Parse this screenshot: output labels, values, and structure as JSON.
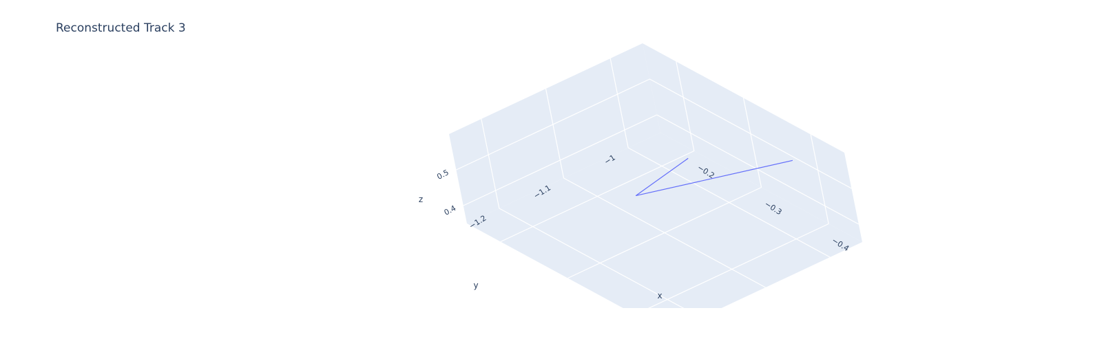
{
  "chart_data": {
    "type": "line3d",
    "title": "Reconstructed Track 3",
    "axes": {
      "x": {
        "label": "x",
        "ticks": [
          "−0.4",
          "−0.3",
          "−0.2"
        ],
        "tick_values": [
          -0.4,
          -0.3,
          -0.2
        ],
        "range": [
          -0.45,
          -0.15
        ]
      },
      "y": {
        "label": "y",
        "ticks": [
          "−1.2",
          "−1.1",
          "−1"
        ],
        "tick_values": [
          -1.2,
          -1.1,
          -1.0
        ],
        "range": [
          -1.25,
          -0.95
        ]
      },
      "z": {
        "label": "z",
        "ticks": [
          "0.4",
          "0.5"
        ],
        "tick_values": [
          0.4,
          0.5
        ],
        "range": [
          0.35,
          0.6
        ]
      }
    },
    "series": [
      {
        "points": [
          {
            "x": -0.27,
            "y": -1.02,
            "z": 0.46
          },
          {
            "x": -0.335,
            "y": -1.16,
            "z": 0.54
          },
          {
            "x": -0.42,
            "y": -1.0,
            "z": 0.59
          }
        ],
        "color": "#636efa"
      }
    ],
    "background_color": "#e5ecf6",
    "grid_color": "#ffffff",
    "grid": true,
    "legend": false
  }
}
